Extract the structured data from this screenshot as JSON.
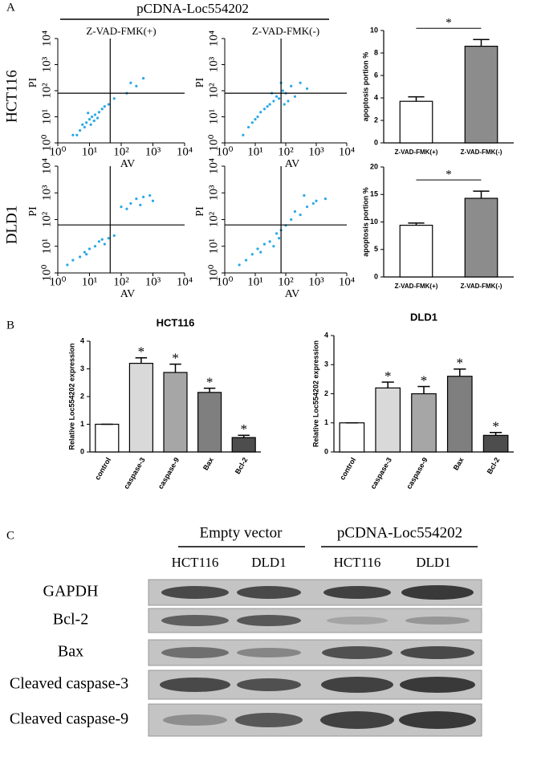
{
  "panel_a": {
    "label": "A",
    "title": "pCDNA-Loc554202",
    "rows": [
      "HCT116",
      "DLD1"
    ]
  },
  "panel_b": {
    "label": "B"
  },
  "chart_data": [
    {
      "type": "scatter",
      "title": "Z-VAD-FMK(+)",
      "xlabel": "AV",
      "ylabel": "PI",
      "log_scale": true,
      "color": "#2aa8e8",
      "xlim": [
        1,
        10000
      ],
      "ylim": [
        1,
        10000
      ],
      "xticks": [
        {
          "value": 1,
          "label": "10⁰"
        },
        {
          "value": 10,
          "label": "10¹"
        },
        {
          "value": 100,
          "label": "10²"
        },
        {
          "value": 1000,
          "label": "10³"
        },
        {
          "value": 10000,
          "label": "10⁴"
        }
      ],
      "yticks": [
        {
          "value": 1,
          "label": "10⁰"
        },
        {
          "value": 10,
          "label": "10¹"
        },
        {
          "value": 100,
          "label": "10²"
        },
        {
          "value": 1000,
          "label": "10³"
        },
        {
          "value": 10000,
          "label": "10⁴"
        }
      ],
      "gate_x": 45,
      "gate_y": 80,
      "x": [
        3,
        5,
        6,
        8,
        10,
        12,
        15,
        20,
        25,
        30,
        7,
        9,
        4,
        14,
        40,
        60,
        150,
        300,
        500,
        200,
        18,
        11
      ],
      "y": [
        2,
        3,
        5,
        6,
        8,
        10,
        12,
        15,
        20,
        25,
        4,
        14,
        2,
        7,
        30,
        50,
        80,
        150,
        300,
        200,
        9,
        5
      ]
    },
    {
      "type": "scatter",
      "title": "Z-VAD-FMK(-)",
      "xlabel": "AV",
      "ylabel": "PI",
      "log_scale": true,
      "color": "#2aa8e8",
      "xlim": [
        1,
        10000
      ],
      "ylim": [
        1,
        10000
      ],
      "xticks": [
        {
          "value": 1,
          "label": "10⁰"
        },
        {
          "value": 10,
          "label": "10¹"
        },
        {
          "value": 100,
          "label": "10²"
        },
        {
          "value": 1000,
          "label": "10³"
        },
        {
          "value": 10000,
          "label": "10⁴"
        }
      ],
      "yticks": [
        {
          "value": 1,
          "label": "10⁰"
        },
        {
          "value": 10,
          "label": "10¹"
        },
        {
          "value": 100,
          "label": "10²"
        },
        {
          "value": 1000,
          "label": "10³"
        },
        {
          "value": 10000,
          "label": "10⁴"
        }
      ],
      "gate_x": 70,
      "gate_y": 80,
      "x": [
        4,
        6,
        8,
        10,
        15,
        20,
        30,
        40,
        50,
        60,
        80,
        100,
        150,
        200,
        300,
        500,
        25,
        70,
        120,
        12,
        35,
        90
      ],
      "y": [
        2,
        4,
        6,
        8,
        15,
        20,
        30,
        40,
        60,
        50,
        100,
        80,
        150,
        60,
        200,
        120,
        25,
        200,
        40,
        10,
        80,
        30
      ]
    },
    {
      "type": "scatter",
      "xlabel": "AV",
      "ylabel": "PI",
      "log_scale": true,
      "color": "#2aa8e8",
      "xlim": [
        1,
        10000
      ],
      "ylim": [
        1,
        10000
      ],
      "xticks": [
        {
          "value": 1,
          "label": "10⁰"
        },
        {
          "value": 10,
          "label": "10¹"
        },
        {
          "value": 100,
          "label": "10²"
        },
        {
          "value": 1000,
          "label": "10³"
        },
        {
          "value": 10000,
          "label": "10⁴"
        }
      ],
      "yticks": [
        {
          "value": 1,
          "label": "10⁰"
        },
        {
          "value": 10,
          "label": "10¹"
        },
        {
          "value": 100,
          "label": "10²"
        },
        {
          "value": 1000,
          "label": "10³"
        },
        {
          "value": 10000,
          "label": "10⁴"
        }
      ],
      "gate_x": 45,
      "gate_y": 63,
      "x": [
        2,
        3,
        5,
        7,
        10,
        15,
        20,
        30,
        40,
        60,
        100,
        200,
        300,
        500,
        1000,
        150,
        400,
        800,
        8,
        25
      ],
      "y": [
        2,
        3,
        4,
        6,
        8,
        10,
        15,
        12,
        20,
        25,
        300,
        400,
        600,
        700,
        500,
        250,
        350,
        800,
        5,
        18
      ]
    },
    {
      "type": "scatter",
      "xlabel": "AV",
      "ylabel": "PI",
      "log_scale": true,
      "color": "#2aa8e8",
      "xlim": [
        1,
        10000
      ],
      "ylim": [
        1,
        10000
      ],
      "xticks": [
        {
          "value": 1,
          "label": "10⁰"
        },
        {
          "value": 10,
          "label": "10¹"
        },
        {
          "value": 100,
          "label": "10²"
        },
        {
          "value": 1000,
          "label": "10³"
        },
        {
          "value": 10000,
          "label": "10⁴"
        }
      ],
      "yticks": [
        {
          "value": 1,
          "label": "10⁰"
        },
        {
          "value": 10,
          "label": "10¹"
        },
        {
          "value": 100,
          "label": "10²"
        },
        {
          "value": 1000,
          "label": "10³"
        },
        {
          "value": 10000,
          "label": "10⁴"
        }
      ],
      "gate_x": 70,
      "gate_y": 63,
      "x": [
        3,
        5,
        8,
        12,
        20,
        30,
        50,
        70,
        100,
        150,
        200,
        300,
        500,
        800,
        1000,
        2000,
        60,
        400,
        40,
        15
      ],
      "y": [
        2,
        3,
        5,
        8,
        12,
        15,
        30,
        40,
        60,
        100,
        200,
        150,
        300,
        400,
        500,
        600,
        20,
        800,
        10,
        6
      ]
    },
    {
      "type": "bar",
      "ylabel": "apoptosis portion %",
      "categories": [
        "Z-VAD-FMK(+)",
        "Z-VAD-FMK(-)"
      ],
      "values": [
        3.7,
        8.6
      ],
      "errors": [
        0.4,
        0.6
      ],
      "colors": [
        "#ffffff",
        "#8c8c8c"
      ],
      "ylim": [
        0,
        10
      ],
      "yticks": [
        0,
        2,
        4,
        6,
        8,
        10
      ],
      "significance": "*"
    },
    {
      "type": "bar",
      "ylabel": "apoptosis portion %",
      "categories": [
        "Z-VAD-FMK(+)",
        "Z-VAD-FMK(-)"
      ],
      "values": [
        9.4,
        14.3
      ],
      "errors": [
        0.4,
        1.3
      ],
      "colors": [
        "#ffffff",
        "#8c8c8c"
      ],
      "ylim": [
        0,
        20
      ],
      "yticks": [
        0,
        5,
        10,
        15,
        20
      ],
      "significance": "*"
    },
    {
      "type": "bar",
      "title": "HCT116",
      "ylabel": "Relative Loc554202 expression",
      "categories": [
        "control",
        "caspase-3",
        "caspase-9",
        "Bax",
        "Bcl-2"
      ],
      "values": [
        1.0,
        3.2,
        2.87,
        2.15,
        0.52
      ],
      "errors": [
        0,
        0.2,
        0.3,
        0.15,
        0.08
      ],
      "colors": [
        "#ffffff",
        "#d9d9d9",
        "#a6a6a6",
        "#7f7f7f",
        "#4d4d4d"
      ],
      "ylim": [
        0,
        4
      ],
      "yticks": [
        0,
        1,
        2,
        3,
        4
      ],
      "annotations": [
        {
          "index": 1,
          "text": "*"
        },
        {
          "index": 2,
          "text": "*"
        },
        {
          "index": 3,
          "text": "*"
        },
        {
          "index": 4,
          "text": "*"
        }
      ]
    },
    {
      "type": "bar",
      "title": "DLD1",
      "ylabel": "Relative Loc554202 expression",
      "categories": [
        "control",
        "caspase-3",
        "caspase-9",
        "Bax",
        "Bcl-2"
      ],
      "values": [
        1.0,
        2.2,
        2.0,
        2.6,
        0.57
      ],
      "errors": [
        0,
        0.2,
        0.25,
        0.25,
        0.1
      ],
      "colors": [
        "#ffffff",
        "#d9d9d9",
        "#a6a6a6",
        "#7f7f7f",
        "#4d4d4d"
      ],
      "ylim": [
        0,
        4
      ],
      "yticks": [
        0,
        1,
        2,
        3,
        4
      ],
      "annotations": [
        {
          "index": 1,
          "text": "*"
        },
        {
          "index": 2,
          "text": "*"
        },
        {
          "index": 3,
          "text": "*"
        },
        {
          "index": 4,
          "text": "*"
        }
      ]
    }
  ],
  "blot": {
    "label": "C",
    "groups": [
      "Empty vector",
      "pCDNA-Loc554202"
    ],
    "columns": [
      "HCT116",
      "DLD1",
      "HCT116",
      "DLD1"
    ],
    "rows": [
      "GAPDH",
      "Bcl-2",
      "Bax",
      "Cleaved caspase-3",
      "Cleaved caspase-9"
    ]
  }
}
